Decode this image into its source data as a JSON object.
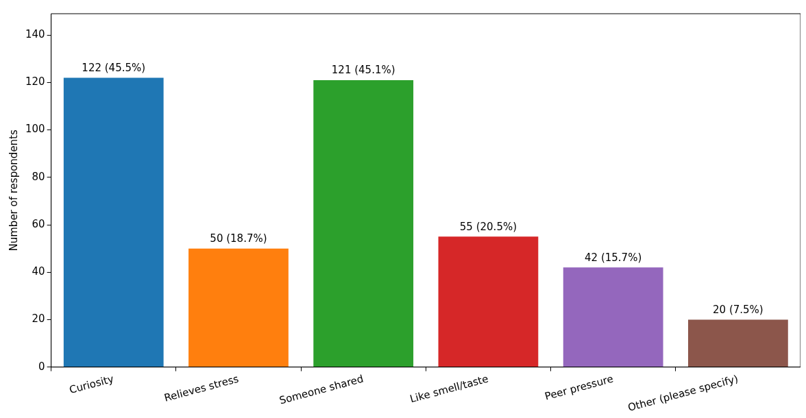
{
  "chart_data": {
    "type": "bar",
    "ylabel": "Number of respondents",
    "categories": [
      "Curiosity",
      "Relieves stress",
      "Someone shared",
      "Like smell/taste",
      "Peer pressure",
      "Other (please specify)"
    ],
    "values": [
      122,
      50,
      121,
      55,
      42,
      20
    ],
    "colors": [
      "#1f77b4",
      "#ff7f0e",
      "#2ca02c",
      "#d62728",
      "#9467bd",
      "#8c564b"
    ],
    "value_labels": [
      "122 (45.5%)",
      "50 (18.7%)",
      "121 (45.1%)",
      "55 (20.5%)",
      "42 (15.7%)",
      "20 (7.5%)"
    ],
    "ylim": [
      0,
      149
    ],
    "yticks": [
      0,
      20,
      40,
      60,
      80,
      100,
      120,
      140
    ],
    "grid": false,
    "legend": false
  }
}
